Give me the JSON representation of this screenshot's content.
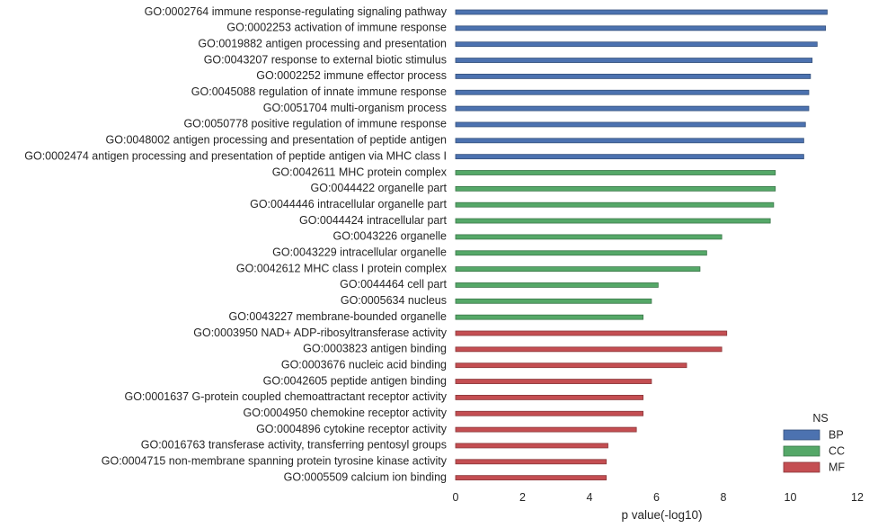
{
  "chart_data": {
    "type": "bar",
    "orientation": "horizontal",
    "xlabel": "p value(-log10)",
    "xlim": [
      0,
      12
    ],
    "xticks": [
      0,
      2,
      4,
      6,
      8,
      10,
      12
    ],
    "grid": false,
    "legend": {
      "title": "NS",
      "placement": "bottom-right",
      "entries": [
        {
          "name": "BP",
          "color": "#4c72b0"
        },
        {
          "name": "CC",
          "color": "#55a868"
        },
        {
          "name": "MF",
          "color": "#c44e52"
        }
      ]
    },
    "bars": [
      {
        "label": "GO:0002764 immune response-regulating signaling pathway",
        "value": 11.1,
        "ns": "BP"
      },
      {
        "label": "GO:0002253 activation of immune response",
        "value": 11.05,
        "ns": "BP"
      },
      {
        "label": "GO:0019882 antigen processing and presentation",
        "value": 10.8,
        "ns": "BP"
      },
      {
        "label": "GO:0043207 response to external biotic stimulus",
        "value": 10.65,
        "ns": "BP"
      },
      {
        "label": "GO:0002252 immune effector process",
        "value": 10.6,
        "ns": "BP"
      },
      {
        "label": "GO:0045088 regulation of innate immune response",
        "value": 10.55,
        "ns": "BP"
      },
      {
        "label": "GO:0051704 multi-organism process",
        "value": 10.55,
        "ns": "BP"
      },
      {
        "label": "GO:0050778 positive regulation of immune response",
        "value": 10.45,
        "ns": "BP"
      },
      {
        "label": "GO:0048002 antigen processing and presentation of peptide antigen",
        "value": 10.4,
        "ns": "BP"
      },
      {
        "label": "GO:0002474 antigen processing and presentation of peptide antigen via MHC class I",
        "value": 10.4,
        "ns": "BP"
      },
      {
        "label": "GO:0042611 MHC protein complex",
        "value": 9.55,
        "ns": "CC"
      },
      {
        "label": "GO:0044422 organelle part",
        "value": 9.55,
        "ns": "CC"
      },
      {
        "label": "GO:0044446 intracellular organelle part",
        "value": 9.5,
        "ns": "CC"
      },
      {
        "label": "GO:0044424 intracellular part",
        "value": 9.4,
        "ns": "CC"
      },
      {
        "label": "GO:0043226 organelle",
        "value": 7.95,
        "ns": "CC"
      },
      {
        "label": "GO:0043229 intracellular organelle",
        "value": 7.5,
        "ns": "CC"
      },
      {
        "label": "GO:0042612 MHC class I protein complex",
        "value": 7.3,
        "ns": "CC"
      },
      {
        "label": "GO:0044464 cell part",
        "value": 6.05,
        "ns": "CC"
      },
      {
        "label": "GO:0005634 nucleus",
        "value": 5.85,
        "ns": "CC"
      },
      {
        "label": "GO:0043227 membrane-bounded organelle",
        "value": 5.6,
        "ns": "CC"
      },
      {
        "label": "GO:0003950 NAD+ ADP-ribosyltransferase activity",
        "value": 8.1,
        "ns": "MF"
      },
      {
        "label": "GO:0003823 antigen binding",
        "value": 7.95,
        "ns": "MF"
      },
      {
        "label": "GO:0003676 nucleic acid binding",
        "value": 6.9,
        "ns": "MF"
      },
      {
        "label": "GO:0042605 peptide antigen binding",
        "value": 5.85,
        "ns": "MF"
      },
      {
        "label": "GO:0001637 G-protein coupled chemoattractant receptor activity",
        "value": 5.6,
        "ns": "MF"
      },
      {
        "label": "GO:0004950 chemokine receptor activity",
        "value": 5.6,
        "ns": "MF"
      },
      {
        "label": "GO:0004896 cytokine receptor activity",
        "value": 5.4,
        "ns": "MF"
      },
      {
        "label": "GO:0016763 transferase activity, transferring pentosyl groups",
        "value": 4.55,
        "ns": "MF"
      },
      {
        "label": "GO:0004715 non-membrane spanning protein tyrosine kinase activity",
        "value": 4.5,
        "ns": "MF"
      },
      {
        "label": "GO:0005509 calcium ion binding",
        "value": 4.5,
        "ns": "MF"
      }
    ]
  }
}
